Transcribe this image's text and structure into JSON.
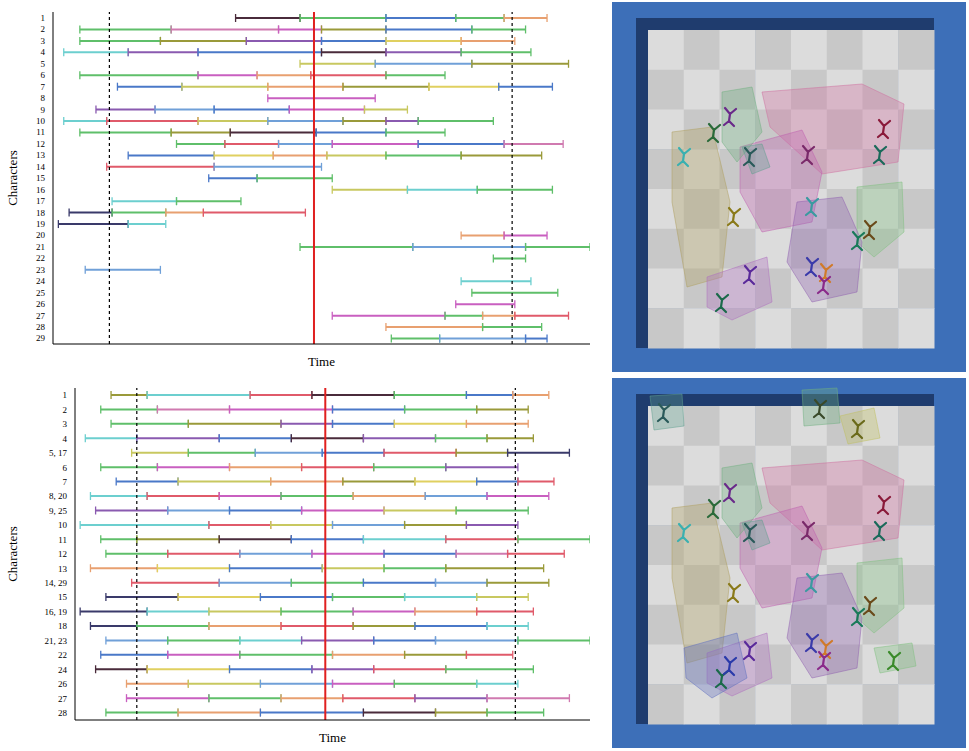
{
  "chart_data": [
    {
      "type": "timeline",
      "x_label": "Time",
      "y_label": "Characters",
      "xlim": [
        0,
        100
      ],
      "xticks": [],
      "tick_labels": "y",
      "dashed_lines": [
        10.5,
        85.5
      ],
      "current_time": 48.6,
      "rows": [
        {
          "name": "1",
          "breaks": [
            34,
            46,
            62,
            75,
            84,
            92
          ],
          "colors": [
            "#4a2b3b",
            "#5fbf6a",
            "#4a78c8",
            "#5fbf6a",
            "#e8a070"
          ]
        },
        {
          "name": "2",
          "breaks": [
            5,
            22,
            42,
            50,
            62,
            78,
            88
          ],
          "colors": [
            "#5fbf6a",
            "#d07ab0",
            "#c95fc0",
            "#9a9a3a",
            "#4a78c8",
            "#5fbf6a"
          ]
        },
        {
          "name": "3",
          "breaks": [
            5,
            20,
            36,
            50,
            62,
            76,
            86
          ],
          "colors": [
            "#5fbf6a",
            "#9a9a3a",
            "#8a5ab0",
            "#4a78c8",
            "#e0d060",
            "#e8a070"
          ]
        },
        {
          "name": "4",
          "breaks": [
            2,
            14,
            27,
            50,
            62,
            76,
            89
          ],
          "colors": [
            "#6ccfcf",
            "#8a5ab0",
            "#4a78c8",
            "#4a2b3b",
            "#8a5ab0",
            "#5fbf6a"
          ]
        },
        {
          "name": "5",
          "breaks": [
            46,
            60,
            78,
            96
          ],
          "colors": [
            "#c8c860",
            "#70a0d8",
            "#9a9a3a"
          ]
        },
        {
          "name": "6",
          "breaks": [
            5,
            27,
            38,
            48,
            62,
            73
          ],
          "colors": [
            "#5fbf6a",
            "#c95fc0",
            "#e8a070",
            "#e05a6a",
            "#5fbf6a"
          ]
        },
        {
          "name": "7",
          "breaks": [
            12,
            24,
            40,
            54,
            70,
            83,
            93
          ],
          "colors": [
            "#4a78c8",
            "#c8c860",
            "#e8a070",
            "#9a9a3a",
            "#e0d060",
            "#4a78c8"
          ]
        },
        {
          "name": "8",
          "breaks": [
            40,
            60
          ],
          "colors": [
            "#c95fc0"
          ]
        },
        {
          "name": "9",
          "breaks": [
            8,
            19,
            30,
            44,
            58,
            66
          ],
          "colors": [
            "#8a5ab0",
            "#70a0d8",
            "#4a78c8",
            "#c95fc0",
            "#c8c860"
          ]
        },
        {
          "name": "10",
          "breaks": [
            2,
            10,
            27,
            40,
            54,
            62,
            68,
            82
          ],
          "colors": [
            "#6ccfcf",
            "#e05a6a",
            "#c8c860",
            "#70a0d8",
            "#9a9a3a",
            "#8a5ab0",
            "#5fbf6a"
          ]
        },
        {
          "name": "11",
          "breaks": [
            5,
            22,
            33,
            49,
            62,
            73
          ],
          "colors": [
            "#5fbf6a",
            "#9a9a3a",
            "#4a2b3b",
            "#4a78c8",
            "#5fbf6a"
          ]
        },
        {
          "name": "12",
          "breaks": [
            23,
            32,
            42,
            52,
            68,
            84,
            95
          ],
          "colors": [
            "#5fbf6a",
            "#e05a6a",
            "#70a0d8",
            "#c95fc0",
            "#4a78c8",
            "#d07ab0"
          ]
        },
        {
          "name": "13",
          "breaks": [
            14,
            30,
            41,
            51,
            62,
            76,
            91
          ],
          "colors": [
            "#4a78c8",
            "#e0d060",
            "#e8a070",
            "#c8c860",
            "#5fbf6a",
            "#9a9a3a"
          ]
        },
        {
          "name": "14",
          "breaks": [
            10,
            30,
            50
          ],
          "colors": [
            "#e05a6a",
            "#70a0d8"
          ]
        },
        {
          "name": "15",
          "breaks": [
            29,
            38,
            52
          ],
          "colors": [
            "#4a78c8",
            "#5fbf6a"
          ]
        },
        {
          "name": "16",
          "breaks": [
            52,
            66,
            79,
            93
          ],
          "colors": [
            "#c8c860",
            "#6ccfcf",
            "#5fbf6a"
          ]
        },
        {
          "name": "17",
          "breaks": [
            11,
            23,
            35
          ],
          "colors": [
            "#6ccfcf",
            "#5fbf6a"
          ]
        },
        {
          "name": "18",
          "breaks": [
            3,
            11,
            21,
            28,
            47
          ],
          "colors": [
            "#3a3a6a",
            "#5fbf6a",
            "#e8a070",
            "#e05a6a"
          ]
        },
        {
          "name": "19",
          "breaks": [
            1,
            14,
            21
          ],
          "colors": [
            "#3a3a6a",
            "#6ccfcf"
          ]
        },
        {
          "name": "20",
          "breaks": [
            76,
            84,
            92
          ],
          "colors": [
            "#e8a070",
            "#c95fc0"
          ]
        },
        {
          "name": "21",
          "breaks": [
            46,
            67,
            88,
            100
          ],
          "colors": [
            "#5fbf6a",
            "#70a0d8",
            "#5fbf6a"
          ]
        },
        {
          "name": "22",
          "breaks": [
            82,
            88
          ],
          "colors": [
            "#5fbf6a"
          ]
        },
        {
          "name": "23",
          "breaks": [
            6,
            20
          ],
          "colors": [
            "#70a0d8"
          ]
        },
        {
          "name": "24",
          "breaks": [
            76,
            89
          ],
          "colors": [
            "#6ccfcf"
          ]
        },
        {
          "name": "25",
          "breaks": [
            78,
            94
          ],
          "colors": [
            "#5fbf6a"
          ]
        },
        {
          "name": "26",
          "breaks": [
            75,
            86
          ],
          "colors": [
            "#c95fc0"
          ]
        },
        {
          "name": "27",
          "breaks": [
            52,
            73,
            80,
            86,
            96
          ],
          "colors": [
            "#c95fc0",
            "#5fbf6a",
            "#e8a070",
            "#e05a6a"
          ]
        },
        {
          "name": "28",
          "breaks": [
            62,
            80,
            91
          ],
          "colors": [
            "#e8a070",
            "#5fbf6a"
          ]
        },
        {
          "name": "29",
          "breaks": [
            63,
            72,
            88,
            92
          ],
          "colors": [
            "#5fbf6a",
            "#70a0d8",
            "#4a78c8"
          ]
        }
      ]
    },
    {
      "type": "timeline",
      "x_label": "Time",
      "y_label": "Characters",
      "xlim": [
        0,
        100
      ],
      "xticks": [],
      "tick_labels": "y",
      "dashed_lines": [
        12,
        85.5
      ],
      "current_time": 48.6,
      "rows": [
        {
          "name": "1",
          "breaks": [
            7,
            14,
            34,
            46,
            62,
            76,
            85,
            92
          ],
          "colors": [
            "#9a9a3a",
            "#6ccfcf",
            "#e05a6a",
            "#4a2b3b",
            "#5fbf6a",
            "#4a78c8",
            "#e8a070"
          ]
        },
        {
          "name": "2",
          "breaks": [
            5,
            16,
            30,
            50,
            64,
            78,
            88
          ],
          "colors": [
            "#5fbf6a",
            "#d07ab0",
            "#c95fc0",
            "#4a78c8",
            "#5fbf6a",
            "#9a9a3a"
          ]
        },
        {
          "name": "3",
          "breaks": [
            7,
            22,
            40,
            50,
            62,
            76,
            88
          ],
          "colors": [
            "#5fbf6a",
            "#9a9a3a",
            "#8a5ab0",
            "#4a78c8",
            "#e0d060",
            "#e8a070"
          ]
        },
        {
          "name": "4",
          "breaks": [
            2,
            12,
            28,
            42,
            56,
            70,
            80,
            89
          ],
          "colors": [
            "#6ccfcf",
            "#8a5ab0",
            "#4a78c8",
            "#4a2b3b",
            "#8a5ab0",
            "#5fbf6a",
            "#9a9a3a"
          ]
        },
        {
          "name": "5, 17",
          "breaks": [
            11,
            22,
            35,
            48,
            60,
            74,
            84,
            96
          ],
          "colors": [
            "#c8c860",
            "#5fbf6a",
            "#70a0d8",
            "#4a78c8",
            "#e05a6a",
            "#9a9a3a",
            "#3a3a6a"
          ]
        },
        {
          "name": "6",
          "breaks": [
            5,
            16,
            30,
            44,
            58,
            72,
            86
          ],
          "colors": [
            "#5fbf6a",
            "#c95fc0",
            "#e8a070",
            "#e05a6a",
            "#5fbf6a",
            "#8a5ab0"
          ]
        },
        {
          "name": "7",
          "breaks": [
            8,
            20,
            38,
            52,
            66,
            78,
            86,
            93
          ],
          "colors": [
            "#4a78c8",
            "#c8c860",
            "#e8a070",
            "#9a9a3a",
            "#e0d060",
            "#4a78c8",
            "#e05a6a"
          ]
        },
        {
          "name": "8, 20",
          "breaks": [
            3,
            14,
            28,
            40,
            54,
            68,
            80,
            92
          ],
          "colors": [
            "#6ccfcf",
            "#e05a6a",
            "#c95fc0",
            "#5fbf6a",
            "#e8a070",
            "#70a0d8",
            "#c95fc0"
          ]
        },
        {
          "name": "9, 25",
          "breaks": [
            4,
            18,
            30,
            44,
            60,
            74,
            88
          ],
          "colors": [
            "#8a5ab0",
            "#70a0d8",
            "#4a78c8",
            "#c95fc0",
            "#c8c860",
            "#5fbf6a"
          ]
        },
        {
          "name": "10",
          "breaks": [
            1,
            26,
            38,
            50,
            64,
            76,
            86
          ],
          "colors": [
            "#6ccfcf",
            "#e05a6a",
            "#c8c860",
            "#70a0d8",
            "#9a9a3a",
            "#8a5ab0"
          ]
        },
        {
          "name": "11",
          "breaks": [
            5,
            12,
            28,
            42,
            56,
            72,
            86,
            100
          ],
          "colors": [
            "#5fbf6a",
            "#9a9a3a",
            "#4a2b3b",
            "#4a78c8",
            "#6ccfcf",
            "#e05a6a",
            "#5fbf6a"
          ]
        },
        {
          "name": "12",
          "breaks": [
            6,
            18,
            32,
            46,
            60,
            74,
            84,
            95
          ],
          "colors": [
            "#5fbf6a",
            "#e05a6a",
            "#70a0d8",
            "#c95fc0",
            "#4a78c8",
            "#d07ab0",
            "#e05a6a"
          ]
        },
        {
          "name": "13",
          "breaks": [
            3,
            16,
            30,
            48,
            60,
            72,
            91
          ],
          "colors": [
            "#e8a070",
            "#e0d060",
            "#4a78c8",
            "#c8c860",
            "#5fbf6a",
            "#9a9a3a"
          ]
        },
        {
          "name": "14, 29",
          "breaks": [
            11,
            28,
            42,
            56,
            70,
            80,
            92
          ],
          "colors": [
            "#e05a6a",
            "#70a0d8",
            "#5fbf6a",
            "#4a78c8",
            "#70a0d8",
            "#9a9a3a"
          ]
        },
        {
          "name": "15",
          "breaks": [
            6,
            20,
            36,
            50,
            64,
            78,
            88
          ],
          "colors": [
            "#3a3a6a",
            "#e0d060",
            "#4a78c8",
            "#5fbf6a",
            "#6ccfcf",
            "#c8c860"
          ]
        },
        {
          "name": "16, 19",
          "breaks": [
            1,
            14,
            26,
            40,
            54,
            66,
            78,
            89
          ],
          "colors": [
            "#3a3a6a",
            "#6ccfcf",
            "#c8c860",
            "#5fbf6a",
            "#c95fc0",
            "#e8a070",
            "#e05a6a"
          ]
        },
        {
          "name": "18",
          "breaks": [
            3,
            12,
            26,
            40,
            54,
            66,
            80,
            88
          ],
          "colors": [
            "#3a3a6a",
            "#5fbf6a",
            "#e8a070",
            "#e05a6a",
            "#9a9a3a",
            "#4a78c8",
            "#6ccfcf"
          ]
        },
        {
          "name": "21, 23",
          "breaks": [
            6,
            18,
            32,
            44,
            58,
            70,
            86,
            100
          ],
          "colors": [
            "#70a0d8",
            "#5fbf6a",
            "#6ccfcf",
            "#8a5ab0",
            "#4a78c8",
            "#70a0d8",
            "#5fbf6a"
          ]
        },
        {
          "name": "22",
          "breaks": [
            5,
            18,
            32,
            50,
            64,
            76,
            85
          ],
          "colors": [
            "#4a78c8",
            "#c95fc0",
            "#5fbf6a",
            "#e8a070",
            "#9a9a3a",
            "#e05a6a"
          ]
        },
        {
          "name": "24",
          "breaks": [
            4,
            14,
            30,
            46,
            58,
            72,
            89
          ],
          "colors": [
            "#4a2b3b",
            "#e0d060",
            "#4a78c8",
            "#8a5ab0",
            "#e05a6a",
            "#5fbf6a"
          ]
        },
        {
          "name": "26",
          "breaks": [
            10,
            22,
            36,
            50,
            62,
            78,
            86
          ],
          "colors": [
            "#e8a070",
            "#c8c860",
            "#70a0d8",
            "#c95fc0",
            "#5fbf6a",
            "#6ccfcf"
          ]
        },
        {
          "name": "27",
          "breaks": [
            10,
            26,
            40,
            52,
            66,
            80,
            96
          ],
          "colors": [
            "#c95fc0",
            "#5fbf6a",
            "#e8a070",
            "#e05a6a",
            "#8a5ab0",
            "#d07ab0"
          ]
        },
        {
          "name": "28",
          "breaks": [
            6,
            20,
            36,
            56,
            70,
            80,
            91
          ],
          "colors": [
            "#5fbf6a",
            "#e8a070",
            "#4a78c8",
            "#4a2b3b",
            "#9a9a3a",
            "#5fbf6a"
          ]
        }
      ]
    }
  ]
}
